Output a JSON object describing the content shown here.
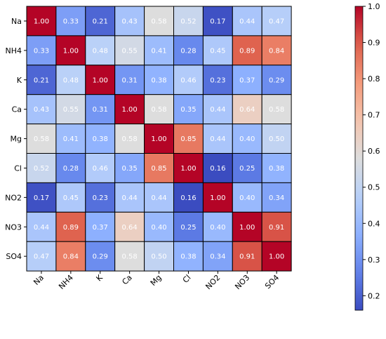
{
  "chart_data": {
    "type": "heatmap",
    "title": "",
    "xlabel": "",
    "ylabel": "",
    "row_labels": [
      "Na",
      "NH4",
      "K",
      "Ca",
      "Mg",
      "Cl",
      "NO2",
      "NO3",
      "SO4"
    ],
    "col_labels": [
      "Na",
      "NH4",
      "K",
      "Ca",
      "Mg",
      "Cl",
      "NO2",
      "NO3",
      "SO4"
    ],
    "values": [
      [
        1.0,
        0.33,
        0.21,
        0.43,
        0.58,
        0.52,
        0.17,
        0.44,
        0.47
      ],
      [
        0.33,
        1.0,
        0.48,
        0.55,
        0.41,
        0.28,
        0.45,
        0.89,
        0.84
      ],
      [
        0.21,
        0.48,
        1.0,
        0.31,
        0.38,
        0.46,
        0.23,
        0.37,
        0.29
      ],
      [
        0.43,
        0.55,
        0.31,
        1.0,
        0.58,
        0.35,
        0.44,
        0.64,
        0.58
      ],
      [
        0.58,
        0.41,
        0.38,
        0.58,
        1.0,
        0.85,
        0.44,
        0.4,
        0.5
      ],
      [
        0.52,
        0.28,
        0.46,
        0.35,
        0.85,
        1.0,
        0.16,
        0.25,
        0.38
      ],
      [
        0.17,
        0.45,
        0.23,
        0.44,
        0.44,
        0.16,
        1.0,
        0.4,
        0.34
      ],
      [
        0.44,
        0.89,
        0.37,
        0.64,
        0.4,
        0.25,
        0.4,
        1.0,
        0.91
      ],
      [
        0.47,
        0.84,
        0.29,
        0.58,
        0.5,
        0.38,
        0.34,
        0.91,
        1.0
      ]
    ],
    "value_format": "2 decimals",
    "colormap": "coolwarm",
    "colorbar": {
      "range": [
        0.16,
        1.0
      ],
      "ticks": [
        0.2,
        0.3,
        0.4,
        0.5,
        0.6,
        0.7,
        0.8,
        0.9,
        1.0
      ],
      "tick_labels": [
        "0.2",
        "0.3",
        "0.4",
        "0.5",
        "0.6",
        "0.7",
        "0.8",
        "0.9",
        "1.0"
      ],
      "position": "right"
    },
    "x_tick_rotation_deg": 45,
    "legend": "none"
  }
}
